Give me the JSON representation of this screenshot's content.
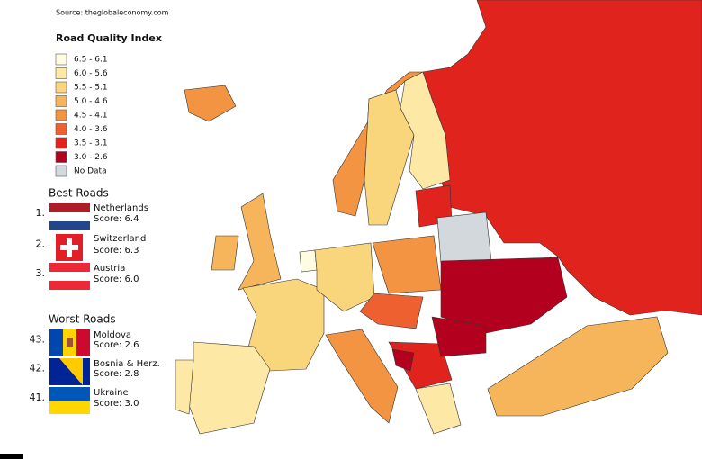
{
  "source": "Source: theglobaleconomy.com",
  "legend": {
    "title": "Road Quality Index",
    "items": [
      {
        "label": "6.5 - 6.1",
        "color": "#fffde1"
      },
      {
        "label": "6.0 - 5.6",
        "color": "#fde8a6"
      },
      {
        "label": "5.5 - 5.1",
        "color": "#f9d57c"
      },
      {
        "label": "5.0 - 4.6",
        "color": "#f6b55a"
      },
      {
        "label": "4.5 - 4.1",
        "color": "#f39443"
      },
      {
        "label": "4.0 - 3.6",
        "color": "#ef6030"
      },
      {
        "label": "3.5 - 3.1",
        "color": "#e0231c"
      },
      {
        "label": "3.0 - 2.6",
        "color": "#b3001e"
      },
      {
        "label": "No Data",
        "color": "#d3d8dc"
      }
    ]
  },
  "best": {
    "title": "Best Roads",
    "items": [
      {
        "rank": "1.",
        "name": "Netherlands",
        "score": "Score: 6.4"
      },
      {
        "rank": "2.",
        "name": "Switzerland",
        "score": "Score: 6.3"
      },
      {
        "rank": "3.",
        "name": "Austria",
        "score": "Score: 6.0"
      }
    ]
  },
  "worst": {
    "title": "Worst Roads",
    "items": [
      {
        "rank": "43.",
        "name": "Moldova",
        "score": "Score: 2.6"
      },
      {
        "rank": "42.",
        "name": "Bosnia & Herz.",
        "score": "Score: 2.8"
      },
      {
        "rank": "41.",
        "name": "Ukraine",
        "score": "Score: 3.0"
      }
    ]
  }
}
